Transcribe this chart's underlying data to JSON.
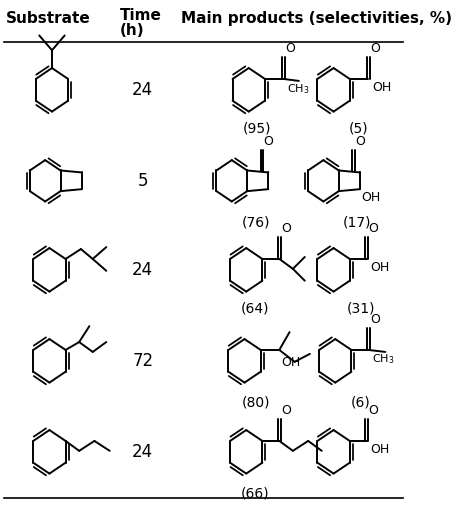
{
  "header_col1": "Substrate",
  "header_col2_line1": "Time",
  "header_col2_line2": "(h)",
  "header_col3": "Main products (selectivities, %)",
  "rows": [
    {
      "time": "24",
      "sel1": "(95)",
      "sel2": "(5)"
    },
    {
      "time": "5",
      "sel1": "(76)",
      "sel2": "(17)"
    },
    {
      "time": "24",
      "sel1": "(64)",
      "sel2": "(31)"
    },
    {
      "time": "72",
      "sel1": "(80)",
      "sel2": "(6)"
    },
    {
      "time": "24",
      "sel1": "(66)",
      "sel2": ""
    }
  ],
  "bg_color": "#ffffff",
  "text_color": "#000000",
  "fig_width": 4.74,
  "fig_height": 5.09,
  "dpi": 100
}
